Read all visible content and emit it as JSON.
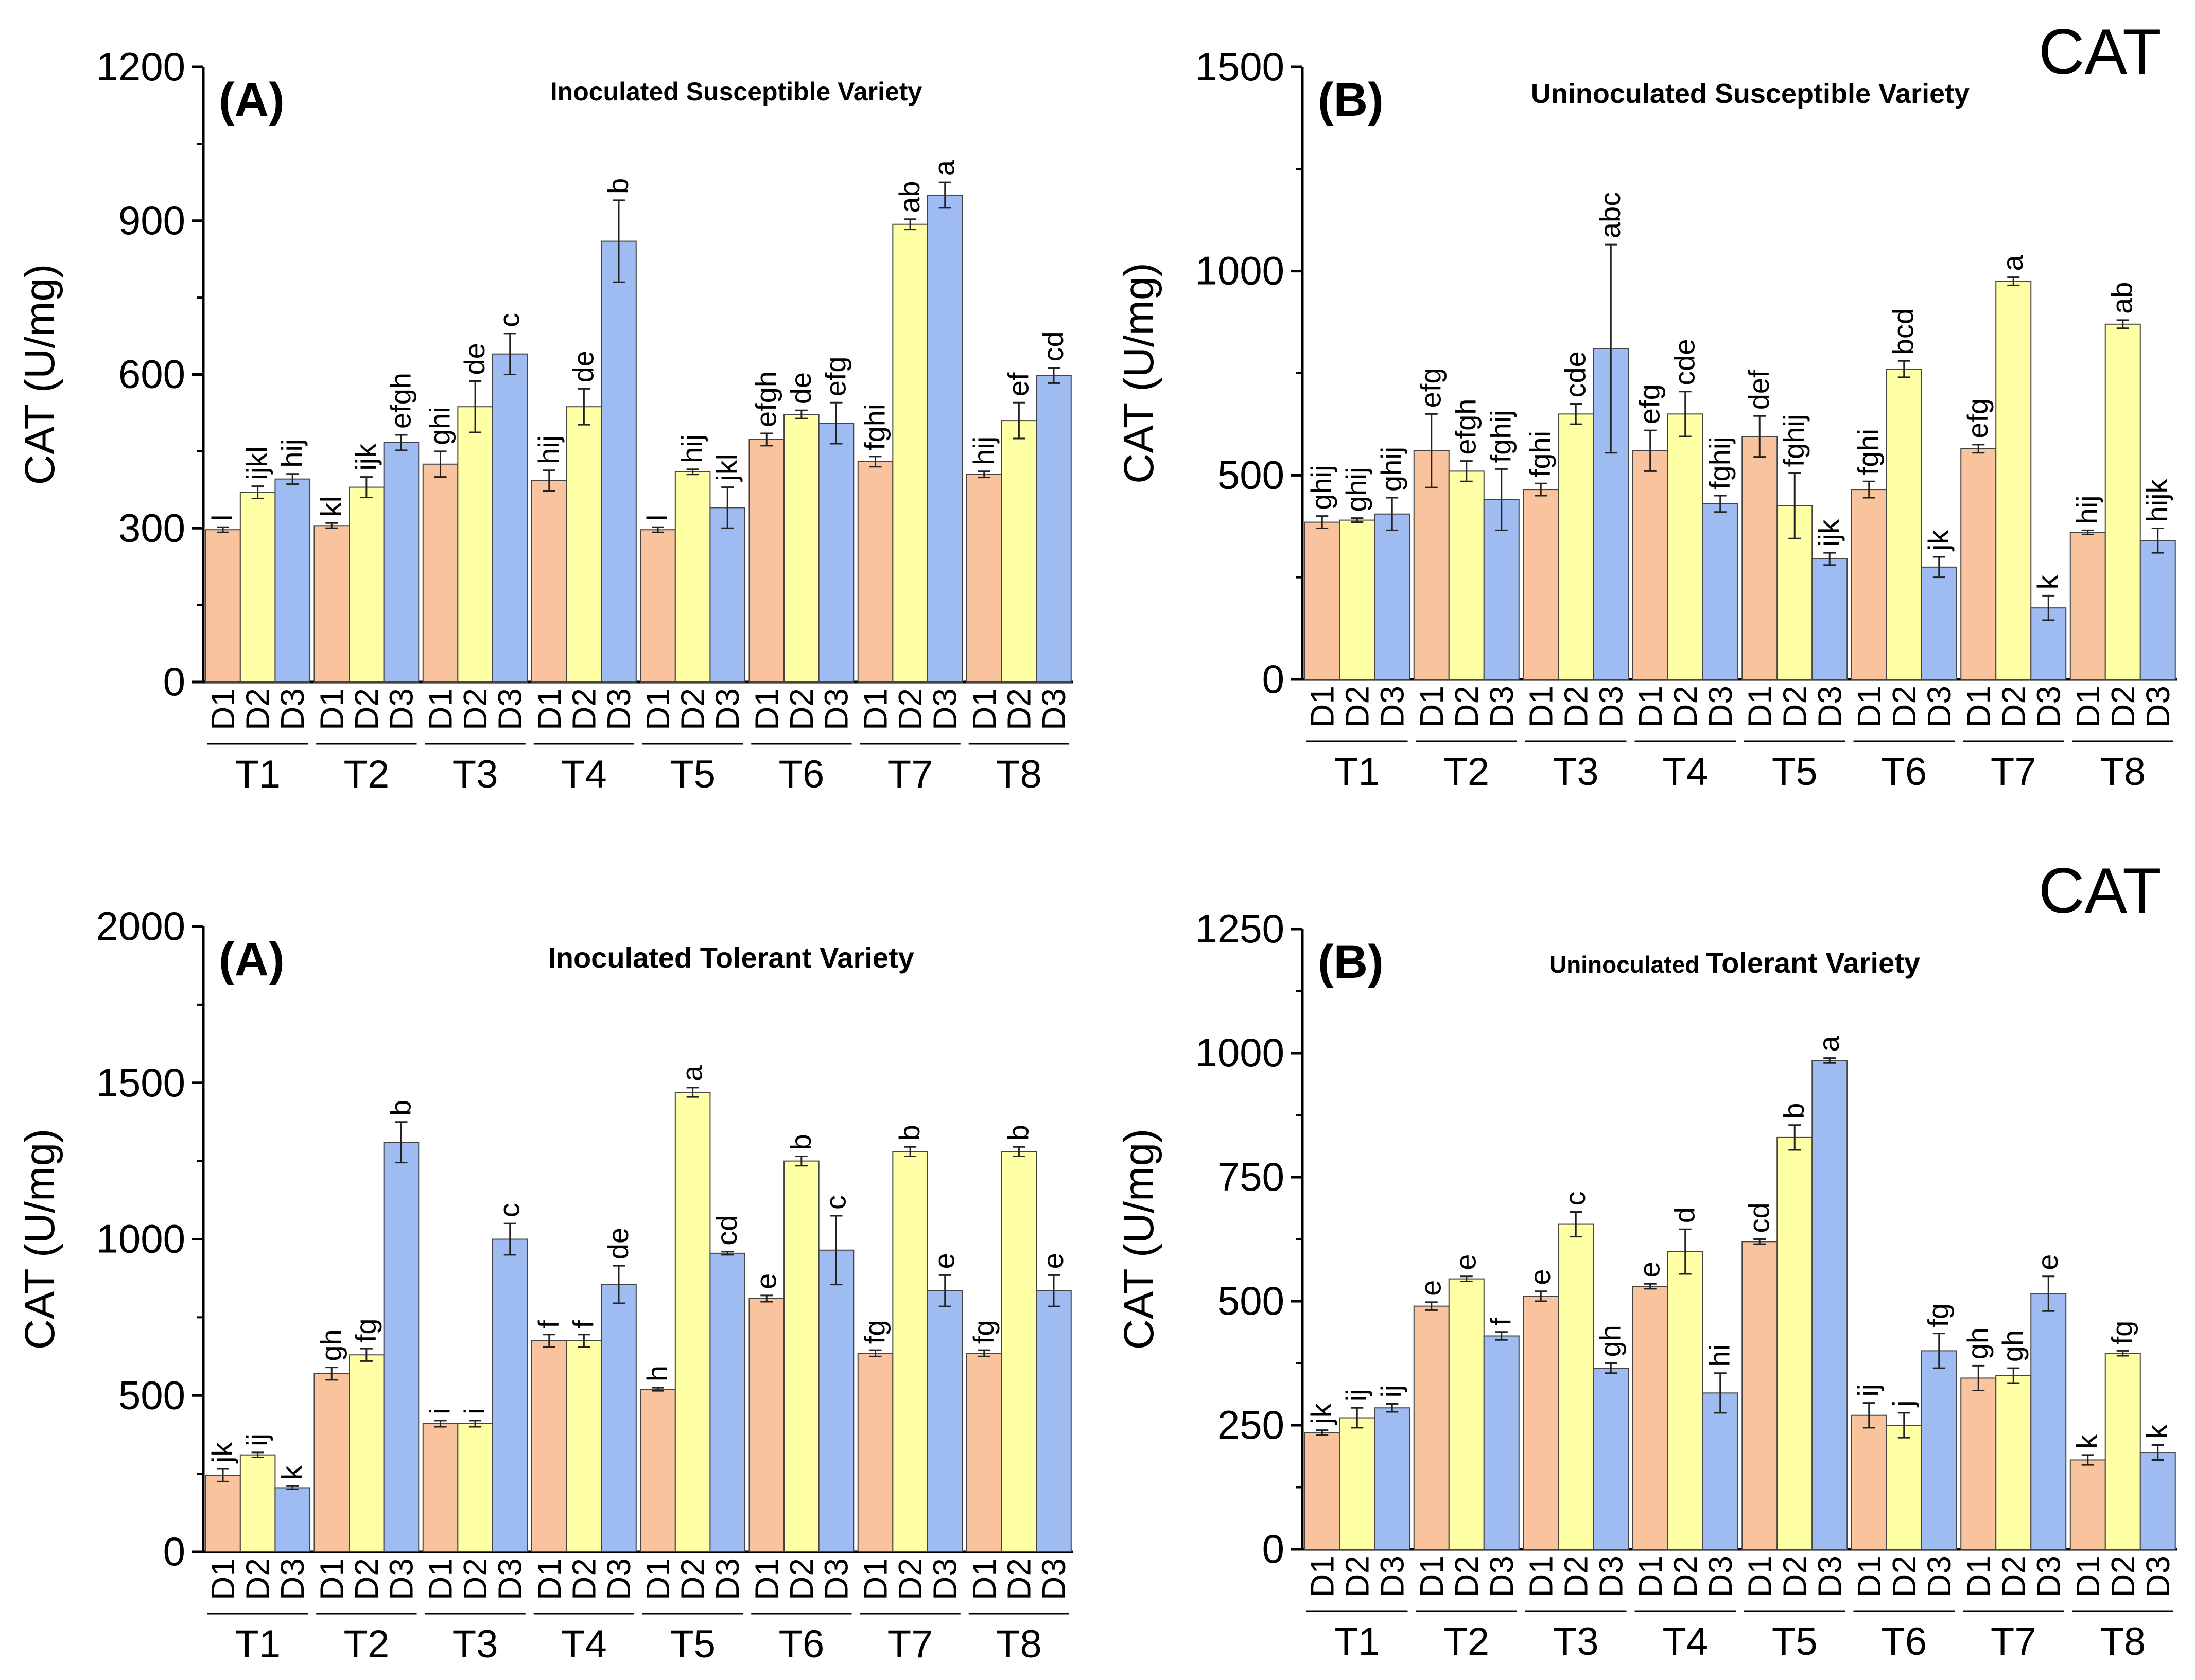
{
  "figure_labels": {
    "top_right": "CAT",
    "bottom_right": "CAT"
  },
  "colors": {
    "D1": "#F8C39D",
    "D2": "#FFFFA6",
    "D3": "#9EBBF2",
    "axis": "#000000"
  },
  "chart_data": [
    {
      "type": "bar",
      "panel": "(A)",
      "title": "Inoculated Susceptible Variety",
      "xlabel": "",
      "ylabel": "CAT (U/mg)",
      "ylim": [
        0,
        1200
      ],
      "yticks": [
        0,
        300,
        600,
        900,
        1200
      ],
      "groups": [
        "T1",
        "T2",
        "T3",
        "T4",
        "T5",
        "T6",
        "T7",
        "T8"
      ],
      "doses": [
        "D1",
        "D2",
        "D3"
      ],
      "series": [
        {
          "name": "D1",
          "values": [
            297,
            305,
            425,
            393,
            297,
            473,
            430,
            405
          ],
          "errors": [
            5,
            5,
            25,
            20,
            5,
            12,
            10,
            6
          ],
          "letters": [
            "l",
            "kl",
            "ghi",
            "hij",
            "l",
            "efgh",
            "fghi",
            "hij"
          ]
        },
        {
          "name": "D2",
          "values": [
            370,
            380,
            537,
            537,
            410,
            522,
            893,
            510
          ],
          "errors": [
            12,
            20,
            50,
            35,
            5,
            8,
            10,
            35
          ],
          "letters": [
            "ijkl",
            "ijk",
            "de",
            "de",
            "hij",
            "de",
            "ab",
            "ef"
          ]
        },
        {
          "name": "D3",
          "values": [
            396,
            467,
            640,
            860,
            340,
            505,
            950,
            598
          ],
          "errors": [
            10,
            15,
            40,
            80,
            40,
            40,
            25,
            15
          ],
          "letters": [
            "hij",
            "efgh",
            "c",
            "b",
            "jkl",
            "efg",
            "a",
            "cd"
          ]
        }
      ]
    },
    {
      "type": "bar",
      "panel": "(B)",
      "title": "Uninoculated Susceptible Variety",
      "xlabel": "",
      "ylabel": "CAT (U/mg)",
      "ylim": [
        0,
        1500
      ],
      "yticks": [
        0,
        500,
        1000,
        1500
      ],
      "groups": [
        "T1",
        "T2",
        "T3",
        "T4",
        "T5",
        "T6",
        "T7",
        "T8"
      ],
      "doses": [
        "D1",
        "D2",
        "D3"
      ],
      "series": [
        {
          "name": "D1",
          "values": [
            385,
            560,
            465,
            560,
            595,
            465,
            565,
            360
          ],
          "errors": [
            15,
            90,
            15,
            50,
            50,
            20,
            10,
            5
          ],
          "letters": [
            "ghij",
            "efg",
            "fghi",
            "efg",
            "def",
            "fghi",
            "efg",
            "hij"
          ]
        },
        {
          "name": "D2",
          "values": [
            390,
            510,
            650,
            650,
            425,
            760,
            975,
            870
          ],
          "errors": [
            5,
            25,
            25,
            55,
            80,
            20,
            10,
            10
          ],
          "letters": [
            "ghij",
            "efgh",
            "cde",
            "cde",
            "fghij",
            "bcd",
            "a",
            "ab"
          ]
        },
        {
          "name": "D3",
          "values": [
            405,
            440,
            810,
            430,
            295,
            275,
            175,
            340
          ],
          "errors": [
            40,
            75,
            255,
            20,
            15,
            25,
            30,
            30
          ],
          "letters": [
            "ghij",
            "fghij",
            "abc",
            "fghij",
            "ijk",
            "jk",
            "k",
            "hijk"
          ]
        }
      ]
    },
    {
      "type": "bar",
      "panel": "(A)",
      "title": "Inoculated Tolerant Variety",
      "xlabel": "",
      "ylabel": "CAT (U/mg)",
      "ylim": [
        0,
        2000
      ],
      "yticks": [
        0,
        500,
        1000,
        1500,
        2000
      ],
      "groups": [
        "T1",
        "T2",
        "T3",
        "T4",
        "T5",
        "T6",
        "T7",
        "T8"
      ],
      "doses": [
        "D1",
        "D2",
        "D3"
      ],
      "series": [
        {
          "name": "D1",
          "values": [
            245,
            570,
            410,
            675,
            520,
            810,
            635,
            635
          ],
          "errors": [
            20,
            20,
            10,
            20,
            5,
            10,
            10,
            10
          ],
          "letters": [
            "jk",
            "gh",
            "i",
            "f",
            "h",
            "e",
            "fg",
            "fg"
          ]
        },
        {
          "name": "D2",
          "values": [
            310,
            630,
            410,
            675,
            1470,
            1250,
            1280,
            1280
          ],
          "errors": [
            8,
            20,
            10,
            20,
            15,
            15,
            15,
            15
          ],
          "letters": [
            "ij",
            "fg",
            "i",
            "f",
            "a",
            "b",
            "b",
            "b"
          ]
        },
        {
          "name": "D3",
          "values": [
            205,
            1310,
            1000,
            855,
            955,
            965,
            835,
            835
          ],
          "errors": [
            5,
            65,
            50,
            60,
            5,
            110,
            50,
            50
          ],
          "letters": [
            "k",
            "b",
            "c",
            "de",
            "cd",
            "c",
            "e",
            "e"
          ]
        }
      ]
    },
    {
      "type": "bar",
      "panel": "(B)",
      "title_part1": "Uninoculated",
      "title_part2": "Tolerant Variety",
      "xlabel": "",
      "ylabel": "CAT (U/mg)",
      "ylim": [
        0,
        1250
      ],
      "yticks": [
        0,
        250,
        500,
        750,
        1000,
        1250
      ],
      "groups": [
        "T1",
        "T2",
        "T3",
        "T4",
        "T5",
        "T6",
        "T7",
        "T8"
      ],
      "doses": [
        "D1",
        "D2",
        "D3"
      ],
      "series": [
        {
          "name": "D1",
          "values": [
            235,
            490,
            510,
            530,
            620,
            270,
            345,
            180
          ],
          "errors": [
            5,
            8,
            10,
            5,
            5,
            25,
            25,
            10
          ],
          "letters": [
            "jk",
            "e",
            "e",
            "e",
            "cd",
            "ij",
            "gh",
            "k"
          ]
        },
        {
          "name": "D2",
          "values": [
            265,
            545,
            655,
            600,
            830,
            250,
            350,
            395
          ],
          "errors": [
            20,
            5,
            25,
            45,
            25,
            25,
            15,
            5
          ],
          "letters": [
            "ij",
            "e",
            "c",
            "d",
            "b",
            "j",
            "gh",
            "fg"
          ]
        },
        {
          "name": "D3",
          "values": [
            285,
            430,
            365,
            315,
            985,
            400,
            515,
            195
          ],
          "errors": [
            8,
            8,
            10,
            40,
            5,
            35,
            35,
            15
          ],
          "letters": [
            "ij",
            "f",
            "gh",
            "hi",
            "a",
            "fg",
            "e",
            "k"
          ]
        }
      ]
    }
  ]
}
